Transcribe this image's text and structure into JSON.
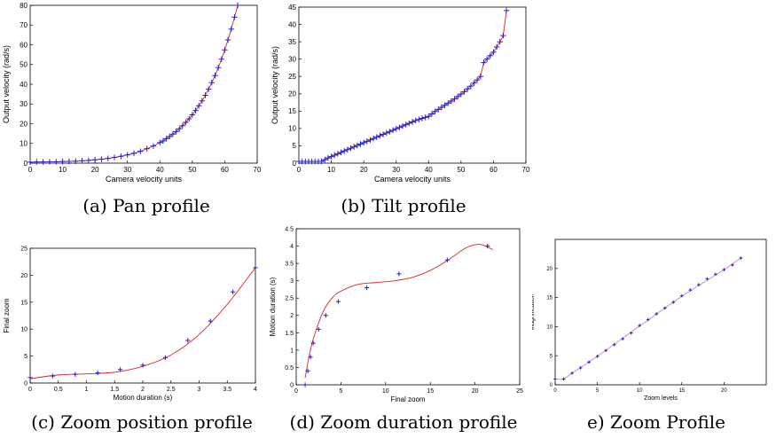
{
  "chart_data": [
    {
      "type": "scatter",
      "caption": "(a) Pan profile",
      "xlabel": "Camera velocity units",
      "ylabel": "Output velocity (rad/s)",
      "xlim": [
        0,
        70
      ],
      "ylim": [
        0,
        80
      ],
      "xticks": [
        0,
        10,
        20,
        30,
        40,
        50,
        60,
        70
      ],
      "yticks": [
        0,
        10,
        20,
        30,
        40,
        50,
        60,
        70,
        80
      ],
      "grid": false,
      "series": [
        {
          "values_x": [
            0,
            2,
            4,
            6,
            8,
            10,
            12,
            14,
            16,
            18,
            20,
            22,
            24,
            26,
            28,
            30,
            32,
            34,
            36,
            38,
            40,
            41,
            42,
            43,
            44,
            45,
            46,
            47,
            48,
            49,
            50,
            51,
            52,
            53,
            54,
            55,
            56,
            57,
            58,
            59,
            60,
            61,
            62,
            63,
            64
          ],
          "values_y": [
            0.5,
            0.6,
            0.6,
            0.7,
            0.7,
            0.8,
            0.9,
            1.0,
            1.2,
            1.4,
            1.7,
            2.0,
            2.4,
            2.9,
            3.5,
            4.2,
            5.0,
            6.0,
            7.3,
            8.7,
            10.4,
            11.3,
            12.4,
            13.5,
            14.7,
            16.0,
            17.4,
            19.0,
            20.7,
            22.5,
            24.5,
            26.7,
            29.1,
            31.6,
            34.4,
            37.5,
            40.8,
            44.4,
            48.4,
            52.7,
            57.4,
            62.5,
            67.9,
            74.0,
            80.0
          ]
        }
      ]
    },
    {
      "type": "scatter",
      "caption": "(b) Tilt profile",
      "xlabel": "Camera velocity units",
      "ylabel": "Output velocity (rad/s)",
      "xlim": [
        0,
        70
      ],
      "ylim": [
        0,
        45
      ],
      "xticks": [
        0,
        10,
        20,
        30,
        40,
        50,
        60,
        70
      ],
      "yticks": [
        0,
        5,
        10,
        15,
        20,
        25,
        30,
        35,
        40,
        45
      ],
      "grid": false,
      "series": [
        {
          "values_x": [
            0,
            1,
            2,
            3,
            4,
            5,
            6,
            7,
            8,
            9,
            10,
            11,
            12,
            13,
            14,
            15,
            16,
            17,
            18,
            19,
            20,
            21,
            22,
            23,
            24,
            25,
            26,
            27,
            28,
            29,
            30,
            31,
            32,
            33,
            34,
            35,
            36,
            37,
            38,
            39,
            40,
            41,
            42,
            43,
            44,
            45,
            46,
            47,
            48,
            49,
            50,
            51,
            52,
            53,
            54,
            55,
            56,
            57,
            58,
            59,
            60,
            61,
            62,
            63,
            64
          ],
          "values_y": [
            0.5,
            0.5,
            0.5,
            0.5,
            0.5,
            0.5,
            0.5,
            0.5,
            1.0,
            1.5,
            1.9,
            2.3,
            2.7,
            3.1,
            3.5,
            3.9,
            4.3,
            4.7,
            5.1,
            5.5,
            5.9,
            6.3,
            6.7,
            7.1,
            7.5,
            7.9,
            8.3,
            8.7,
            9.1,
            9.5,
            9.9,
            10.3,
            10.7,
            11.1,
            11.5,
            11.9,
            12.3,
            12.6,
            12.9,
            13.2,
            13.5,
            14.2,
            14.9,
            15.5,
            16.1,
            16.7,
            17.3,
            17.9,
            18.5,
            19.2,
            19.9,
            20.6,
            21.4,
            22.2,
            23.1,
            24.0,
            25.0,
            29.0,
            30.0,
            31.0,
            32.0,
            33.5,
            35.0,
            36.8,
            44.0
          ]
        }
      ]
    },
    {
      "type": "scatter",
      "caption": "(c) Zoom position profile",
      "xlabel": "Motion duration (s)",
      "ylabel": "Final zoom",
      "xlim": [
        0,
        4
      ],
      "ylim": [
        0,
        25
      ],
      "xticks": [
        0,
        0.5,
        1,
        1.5,
        2,
        2.5,
        3,
        3.5,
        4
      ],
      "yticks": [
        0,
        5,
        10,
        15,
        20,
        25
      ],
      "grid": false,
      "series": [
        {
          "values_x": [
            0,
            0.4,
            0.8,
            1.2,
            1.6,
            2.0,
            2.4,
            2.8,
            3.2,
            3.6,
            4.0
          ],
          "values_y": [
            1.0,
            1.3,
            1.6,
            1.9,
            2.5,
            3.3,
            4.7,
            7.9,
            11.5,
            16.9,
            21.4
          ]
        },
        {
          "values_x": [
            0,
            0.5,
            1.0,
            1.5,
            2.0,
            2.5,
            3.0,
            3.5,
            4.0
          ],
          "values_y": [
            0.8,
            1.5,
            1.7,
            2.0,
            3.1,
            5.2,
            9.0,
            14.6,
            21.4
          ]
        }
      ]
    },
    {
      "type": "scatter",
      "caption": "(d) Zoom duration profile",
      "xlabel": "Final zoom",
      "ylabel": "Motion duration (s)",
      "xlim": [
        0,
        25
      ],
      "ylim": [
        0,
        4.5
      ],
      "xticks": [
        0,
        5,
        10,
        15,
        20,
        25
      ],
      "yticks": [
        0,
        0.5,
        1,
        1.5,
        2,
        2.5,
        3,
        3.5,
        4,
        4.5
      ],
      "grid": false,
      "series": [
        {
          "values_x": [
            1.0,
            1.3,
            1.6,
            1.9,
            2.5,
            3.3,
            4.7,
            7.9,
            11.5,
            16.9,
            21.4
          ],
          "values_y": [
            0.0,
            0.4,
            0.8,
            1.2,
            1.6,
            2.0,
            2.4,
            2.8,
            3.2,
            3.6,
            4.0
          ]
        },
        {
          "values_x": [
            1.0,
            1.5,
            2.0,
            3.0,
            4.0,
            5.0,
            7.0,
            9.0,
            11.0,
            13.0,
            15.0,
            17.0,
            19.0,
            20.5,
            22.0
          ],
          "values_y": [
            0.2,
            0.9,
            1.4,
            2.1,
            2.5,
            2.7,
            2.9,
            2.95,
            3.0,
            3.1,
            3.3,
            3.6,
            3.95,
            4.05,
            3.9
          ]
        }
      ]
    },
    {
      "type": "scatter",
      "caption": "e) Zoom Profile",
      "xlabel": "Zoom levels",
      "ylabel": "Magnification",
      "xlim": [
        0,
        25
      ],
      "ylim": [
        0,
        25
      ],
      "xticks": [
        0,
        5,
        10,
        15,
        20
      ],
      "yticks": [
        0,
        5,
        10,
        15,
        20
      ],
      "grid": false,
      "series": [
        {
          "values_x": [
            0,
            1,
            2,
            3,
            4,
            5,
            6,
            7,
            8,
            9,
            10,
            11,
            12,
            13,
            14,
            15,
            16,
            17,
            18,
            19,
            20,
            21,
            22
          ],
          "values_y": [
            1.0,
            1.0,
            2.0,
            2.9,
            3.9,
            4.9,
            5.9,
            6.9,
            7.9,
            8.9,
            10.2,
            11.2,
            12.2,
            13.2,
            14.2,
            15.3,
            16.3,
            17.2,
            18.2,
            19.0,
            19.8,
            20.6,
            21.8
          ]
        },
        {
          "values_x": [
            0,
            1,
            2,
            5,
            10,
            15,
            20,
            22
          ],
          "values_y": [
            1.0,
            1.0,
            2.0,
            4.9,
            10.1,
            15.2,
            19.8,
            21.8
          ]
        }
      ]
    }
  ],
  "colors": {
    "marker": "#2020d0",
    "curve": "#e02020",
    "axis": "#000000"
  }
}
